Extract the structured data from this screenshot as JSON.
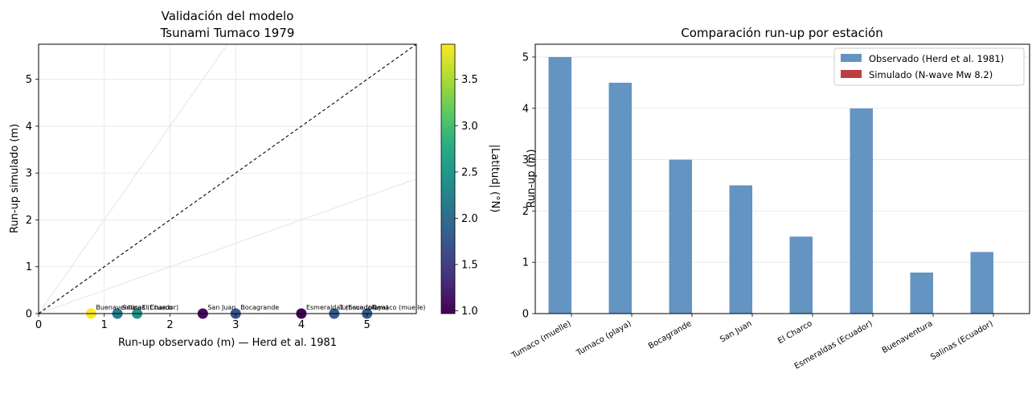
{
  "chart_data": [
    {
      "type": "scatter",
      "title": [
        "Validación del modelo",
        "Tsunami Tumaco 1979"
      ],
      "xlabel": "Run-up observado (m) — Herd et al. 1981",
      "ylabel": "Run-up simulado (m)",
      "xlim": [
        0,
        5.75
      ],
      "ylim": [
        0,
        5.75
      ],
      "xticks": [
        "0",
        "1",
        "2",
        "3",
        "4",
        "5"
      ],
      "yticks": [
        "0",
        "1",
        "2",
        "3",
        "4",
        "5"
      ],
      "grid": true,
      "reference_lines": [
        "y = x (dashed)",
        "y = 2x",
        "y = 0.5x"
      ],
      "colorbar": {
        "label": "|Latitud| (°N)",
        "colormap": "viridis",
        "range": [
          0.97,
          3.88
        ],
        "ticks": [
          "1.0",
          "1.5",
          "2.0",
          "2.5",
          "3.0",
          "3.5"
        ]
      },
      "points": [
        {
          "label": "Tumaco (muelle)",
          "x": 5.0,
          "y": 0.0,
          "lat": 1.8
        },
        {
          "label": "Tumaco (playa)",
          "x": 4.5,
          "y": 0.0,
          "lat": 1.8
        },
        {
          "label": "Bocagrande",
          "x": 3.0,
          "y": 0.0,
          "lat": 1.72
        },
        {
          "label": "San Juan",
          "x": 2.5,
          "y": 0.0,
          "lat": 1.05
        },
        {
          "label": "El Charco",
          "x": 1.5,
          "y": 0.0,
          "lat": 2.48
        },
        {
          "label": "Esmeraldas (Ecuador)",
          "x": 4.0,
          "y": 0.0,
          "lat": 0.97
        },
        {
          "label": "Buenaventura",
          "x": 0.8,
          "y": 0.0,
          "lat": 3.88
        },
        {
          "label": "Salinas (Ecuador)",
          "x": 1.2,
          "y": 0.0,
          "lat": 2.2
        }
      ]
    },
    {
      "type": "bar",
      "title": "Comparación run-up por estación",
      "ylabel": "Run-up (m)",
      "ylim": [
        0,
        5.25
      ],
      "yticks": [
        "0",
        "1",
        "2",
        "3",
        "4",
        "5"
      ],
      "grid": true,
      "legend_position": "top-right",
      "categories": [
        "Tumaco (muelle)",
        "Tumaco (playa)",
        "Bocagrande",
        "San Juan",
        "El Charco",
        "Esmeraldas (Ecuador)",
        "Buenaventura",
        "Salinas (Ecuador)"
      ],
      "series": [
        {
          "name": "Observado (Herd et al. 1981)",
          "color": "#6394c2",
          "values": [
            5.0,
            4.5,
            3.0,
            2.5,
            1.5,
            4.0,
            0.8,
            1.2
          ]
        },
        {
          "name": "Simulado (N-wave Mw 8.2)",
          "color": "#bd3e3e",
          "values": [
            0,
            0,
            0,
            0,
            0,
            0,
            0,
            0
          ]
        }
      ]
    }
  ]
}
